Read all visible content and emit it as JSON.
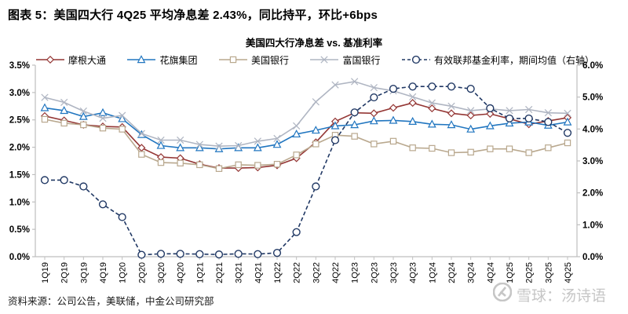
{
  "page": {
    "title": "图表 5：美国四大行 4Q25 平均净息差 2.43%，同比持平，环比+6bps",
    "source_note": "资料来源：公司公告，美联储，中金公司研究部",
    "watermark_text": "雪球：汤诗语"
  },
  "chart_data": {
    "type": "line",
    "title": "美国四大行净息差 vs. 基准利率",
    "legend_position": "top",
    "grid": false,
    "axis_color": "#BFBFBF",
    "label_color": "#000000",
    "categories": [
      "1Q19",
      "2Q19",
      "3Q19",
      "4Q19",
      "1Q20",
      "2Q20",
      "3Q20",
      "4Q20",
      "1Q21",
      "2Q21",
      "3Q21",
      "4Q21",
      "1Q22",
      "2Q22",
      "3Q22",
      "4Q22",
      "1Q23",
      "2Q23",
      "3Q23",
      "4Q23",
      "1Q24",
      "2Q24",
      "3Q24",
      "4Q24",
      "1Q25",
      "2Q25",
      "3Q25",
      "4Q25"
    ],
    "left_axis": {
      "min": 0,
      "max": 3.5,
      "ticks": [
        "0.0%",
        "0.5%",
        "1.0%",
        "1.5%",
        "2.0%",
        "2.5%",
        "3.0%",
        "3.5%"
      ]
    },
    "right_axis": {
      "min": 0,
      "max": 6,
      "ticks": [
        "0.0%",
        "1.0%",
        "2.0%",
        "3.0%",
        "4.0%",
        "5.0%",
        "6.0%"
      ]
    },
    "series": [
      {
        "name": "摩根大通",
        "color": "#943634",
        "marker": "diamond",
        "dash": false,
        "axis": "left",
        "values": [
          2.57,
          2.49,
          2.41,
          2.38,
          2.37,
          1.99,
          1.82,
          1.8,
          1.69,
          1.62,
          1.62,
          1.63,
          1.67,
          1.8,
          2.09,
          2.47,
          2.63,
          2.62,
          2.72,
          2.81,
          2.71,
          2.62,
          2.58,
          2.61,
          2.52,
          2.42,
          2.48,
          2.54
        ]
      },
      {
        "name": "花旗集团",
        "color": "#2176C0",
        "marker": "triangle",
        "dash": false,
        "axis": "left",
        "values": [
          2.72,
          2.67,
          2.56,
          2.63,
          2.52,
          2.23,
          2.03,
          1.99,
          1.99,
          1.97,
          1.99,
          1.99,
          2.05,
          2.24,
          2.31,
          2.39,
          2.41,
          2.48,
          2.49,
          2.47,
          2.42,
          2.41,
          2.33,
          2.39,
          2.44,
          2.46,
          2.4,
          2.46
        ]
      },
      {
        "name": "美国银行",
        "color": "#B9A88E",
        "marker": "square",
        "dash": false,
        "axis": "left",
        "values": [
          2.51,
          2.44,
          2.41,
          2.35,
          2.33,
          1.87,
          1.72,
          1.71,
          1.68,
          1.61,
          1.68,
          1.67,
          1.69,
          1.86,
          2.06,
          2.22,
          2.2,
          2.06,
          2.11,
          1.99,
          1.98,
          1.9,
          1.91,
          1.97,
          1.97,
          1.9,
          1.99,
          2.08
        ]
      },
      {
        "name": "富国银行",
        "color": "#AFB5C2",
        "marker": "xmark",
        "dash": false,
        "axis": "left",
        "values": [
          2.91,
          2.82,
          2.66,
          2.53,
          2.58,
          2.25,
          2.13,
          2.13,
          2.05,
          2.02,
          2.03,
          2.11,
          2.16,
          2.39,
          2.83,
          3.14,
          3.2,
          3.09,
          3.03,
          2.92,
          2.81,
          2.75,
          2.67,
          2.7,
          2.67,
          2.69,
          2.63,
          2.62
        ]
      },
      {
        "name": "有效联邦基金利率，期间均值（右轴）",
        "color": "#203864",
        "marker": "circle",
        "dash": true,
        "axis": "right",
        "values": [
          2.4,
          2.4,
          2.2,
          1.64,
          1.24,
          0.06,
          0.09,
          0.09,
          0.08,
          0.07,
          0.09,
          0.08,
          0.12,
          0.77,
          2.2,
          3.65,
          4.52,
          4.99,
          5.26,
          5.33,
          5.33,
          5.33,
          5.26,
          4.65,
          4.33,
          4.33,
          4.22,
          3.88
        ]
      }
    ]
  }
}
